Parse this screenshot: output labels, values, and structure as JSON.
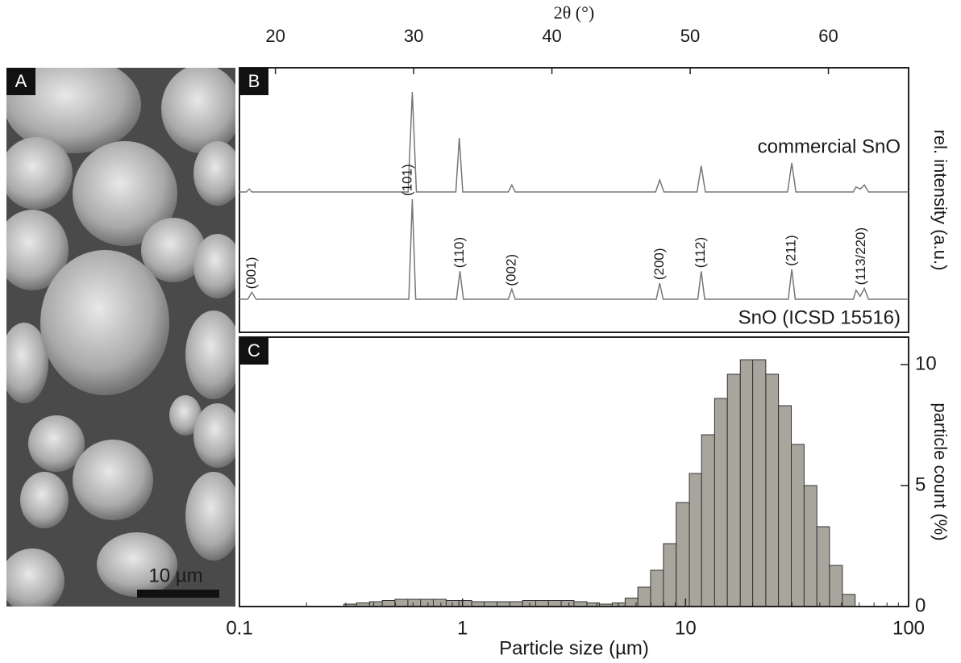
{
  "image": {
    "panel": "A",
    "scale_bar": "10 µm"
  },
  "chart_data": [
    {
      "type": "line",
      "panel": "B",
      "title": "2θ (°)",
      "y_label": "rel. intensity (a.u.)",
      "xlim": [
        17.4,
        65.8
      ],
      "xticks": [
        20,
        30,
        40,
        50,
        60
      ],
      "ylim": [
        0,
        100
      ],
      "series": [
        {
          "name": "commercial SnO",
          "color": "#777777",
          "x": [
            17.4,
            17.9,
            18.1,
            18.3,
            29.6,
            29.9,
            30.2,
            33.05,
            33.3,
            33.55,
            36.85,
            37.1,
            37.35,
            47.5,
            47.8,
            48.1,
            50.5,
            50.8,
            51.1,
            57.05,
            57.35,
            57.65,
            61.8,
            62.0,
            62.3,
            62.6,
            62.9,
            65.8
          ],
          "values": [
            0,
            0,
            3,
            0,
            0,
            100,
            0,
            0,
            54,
            0,
            0,
            7,
            0,
            0,
            12,
            0,
            0,
            26,
            0,
            0,
            29,
            0,
            0,
            5,
            3,
            7,
            0,
            0
          ]
        },
        {
          "name": "SnO (ICSD 15516)",
          "color": "#777777",
          "x": [
            17.4,
            18.0,
            18.3,
            18.6,
            29.65,
            29.9,
            30.15,
            33.1,
            33.35,
            33.6,
            36.85,
            37.1,
            37.35,
            47.55,
            47.8,
            48.05,
            50.55,
            50.8,
            51.05,
            57.1,
            57.35,
            57.6,
            61.8,
            62.0,
            62.3,
            62.6,
            62.9,
            65.8
          ],
          "values": [
            0,
            0,
            7,
            0,
            0,
            100,
            0,
            0,
            28,
            0,
            0,
            10,
            0,
            0,
            16,
            0,
            0,
            28,
            0,
            0,
            30,
            0,
            0,
            9,
            3,
            11,
            0,
            0
          ]
        }
      ],
      "annotations": [
        {
          "x": 18.3,
          "text": "(001)"
        },
        {
          "x": 29.6,
          "text": "(101)"
        },
        {
          "x": 33.35,
          "text": "(110)"
        },
        {
          "x": 37.1,
          "text": "(002)"
        },
        {
          "x": 47.8,
          "text": "(200)"
        },
        {
          "x": 50.8,
          "text": "(112)"
        },
        {
          "x": 57.35,
          "text": "(211)"
        },
        {
          "x": 62.4,
          "text": "(113/220)"
        }
      ]
    },
    {
      "type": "histogram",
      "panel": "C",
      "x_label": "Particle size (µm)",
      "y_label": "particle count (%)",
      "log_x": true,
      "color": "#a8a59d",
      "xlim": [
        0.1,
        100
      ],
      "xticks": [
        0.1,
        1,
        10,
        100
      ],
      "ylim": [
        0,
        10.8
      ],
      "yticks": [
        0,
        5,
        10
      ],
      "bins": [
        0.294,
        0.335,
        0.383,
        0.437,
        0.498,
        0.569,
        0.649,
        0.74,
        0.845,
        0.964,
        1.1,
        1.25,
        1.43,
        1.63,
        1.86,
        2.13,
        2.43,
        2.77,
        3.16,
        3.61,
        4.11,
        4.69,
        5.36,
        6.11,
        6.97,
        7.96,
        9.08,
        10.4,
        11.8,
        13.5,
        15.4,
        17.6,
        20.0,
        22.9,
        26.1,
        29.8,
        34.0,
        38.8,
        44.2,
        50.5,
        57.6
      ],
      "values": [
        0.1,
        0.15,
        0.2,
        0.25,
        0.3,
        0.3,
        0.3,
        0.3,
        0.25,
        0.25,
        0.2,
        0.2,
        0.2,
        0.2,
        0.25,
        0.25,
        0.25,
        0.25,
        0.2,
        0.15,
        0.1,
        0.15,
        0.35,
        0.8,
        1.5,
        2.6,
        4.3,
        5.5,
        7.1,
        8.6,
        9.6,
        10.2,
        10.2,
        9.6,
        8.3,
        6.7,
        5.0,
        3.3,
        1.7,
        0.5
      ]
    }
  ]
}
